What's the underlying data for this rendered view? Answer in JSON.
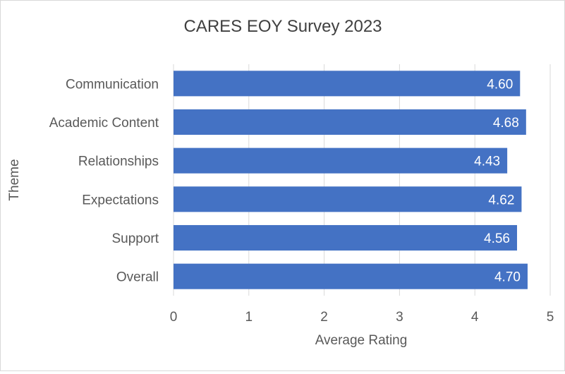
{
  "chart_data": {
    "type": "bar",
    "orientation": "horizontal",
    "title": "CARES EOY Survey 2023",
    "xlabel": "Average Rating",
    "ylabel": "Theme",
    "categories": [
      "Communication",
      "Academic Content",
      "Relationships",
      "Expectations",
      "Support",
      "Overall"
    ],
    "values": [
      4.6,
      4.68,
      4.43,
      4.62,
      4.56,
      4.7
    ],
    "data_labels": [
      "4.60",
      "4.68",
      "4.43",
      "4.62",
      "4.56",
      "4.70"
    ],
    "xlim": [
      0,
      5
    ],
    "x_ticks": [
      "0",
      "1",
      "2",
      "3",
      "4",
      "5"
    ],
    "grid": "vertical",
    "legend": "none",
    "bar_color": "#4472c4",
    "grid_color": "#d9d9d9",
    "text_color": "#595959",
    "label_color": "#ffffff"
  }
}
